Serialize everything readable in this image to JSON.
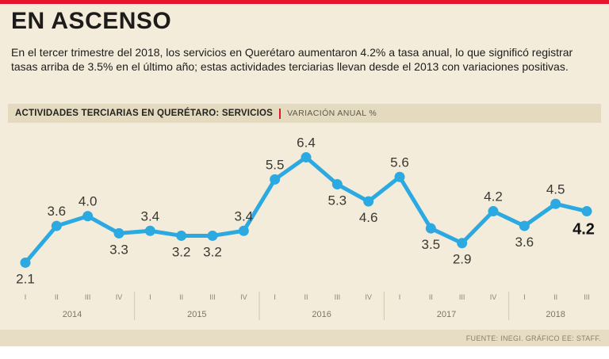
{
  "page": {
    "title": "EN ASCENSO",
    "intro": "En el tercer trimestre del 2018, los servicios en Querétaro aumentaron 4.2% a tasa anual, lo que significó registrar tasas arriba de 3.5% en el último año; estas actividades terciarias llevan desde el 2013 con variaciones positivas.",
    "source": "FUENTE: INEGI. GRÁFICO EE: STAFF."
  },
  "header_bar": {
    "label_bold": "ACTIVIDADES TERCIARIAS EN QUERÉTARO: SERVICIOS",
    "label_units": "VARIACIÓN ANUAL %"
  },
  "colors": {
    "accent_red": "#e5152d",
    "line_blue": "#2ba9e0",
    "background": "#f3ecdb",
    "bar_bg": "#e4dabf",
    "label_gray": "#3a3833",
    "axis_gray": "#8d8370"
  },
  "chart_data": {
    "type": "line",
    "title": "ACTIVIDADES TERCIARIAS EN QUERÉTARO: SERVICIOS",
    "ylabel": "VARIACIÓN ANUAL %",
    "x": [
      "2014-I",
      "2014-II",
      "2014-III",
      "2014-IV",
      "2015-I",
      "2015-II",
      "2015-III",
      "2015-IV",
      "2016-I",
      "2016-II",
      "2016-III",
      "2016-IV",
      "2017-I",
      "2017-II",
      "2017-III",
      "2017-IV",
      "2018-I",
      "2018-II",
      "2018-III"
    ],
    "quarter_labels": [
      "I",
      "II",
      "III",
      "IV",
      "I",
      "II",
      "III",
      "IV",
      "I",
      "II",
      "III",
      "IV",
      "I",
      "II",
      "III",
      "IV",
      "I",
      "II",
      "III"
    ],
    "year_groups": [
      {
        "label": "2014",
        "count": 4
      },
      {
        "label": "2015",
        "count": 4
      },
      {
        "label": "2016",
        "count": 4
      },
      {
        "label": "2017",
        "count": 4
      },
      {
        "label": "2018",
        "count": 3
      }
    ],
    "values": [
      2.1,
      3.6,
      4.0,
      3.3,
      3.4,
      3.2,
      3.2,
      3.4,
      5.5,
      6.4,
      5.3,
      4.6,
      5.6,
      3.5,
      2.9,
      4.2,
      3.6,
      4.5,
      4.2
    ],
    "label_positions": [
      "below",
      "above",
      "above",
      "below",
      "above",
      "below",
      "below",
      "above",
      "above",
      "above",
      "below",
      "below",
      "above",
      "below",
      "below",
      "above",
      "below",
      "above",
      "below"
    ],
    "highlight_last": true,
    "ylim": [
      1.5,
      7.0
    ],
    "grid": false,
    "legend": "none"
  }
}
